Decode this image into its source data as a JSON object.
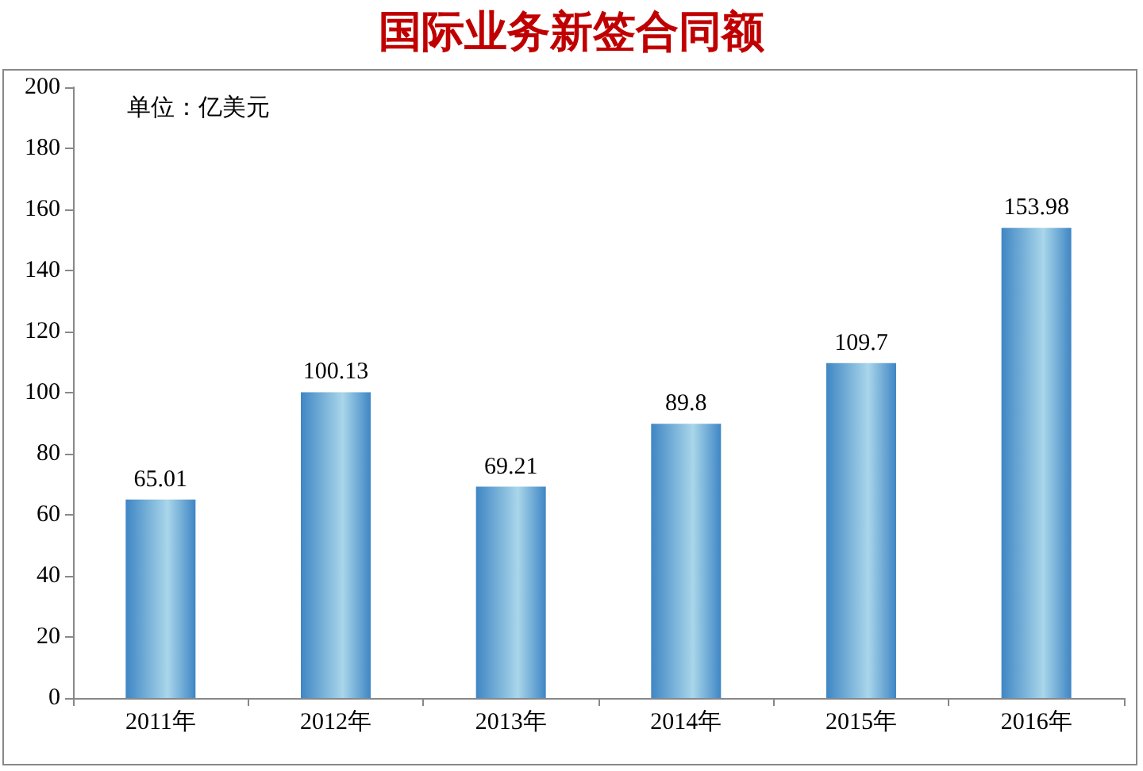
{
  "chart_data": {
    "type": "bar",
    "title": "国际业务新签合同额",
    "annotations": [
      "单位：亿美元"
    ],
    "categories": [
      "2011年",
      "2012年",
      "2013年",
      "2014年",
      "2015年",
      "2016年"
    ],
    "values": [
      65.01,
      100.13,
      69.21,
      89.8,
      109.7,
      153.98
    ],
    "color": "#3f86c4",
    "ylim": [
      0,
      200
    ],
    "yticks": [
      0,
      20,
      40,
      60,
      80,
      100,
      120,
      140,
      160,
      180,
      200
    ],
    "grid": false,
    "data_labels": true
  }
}
